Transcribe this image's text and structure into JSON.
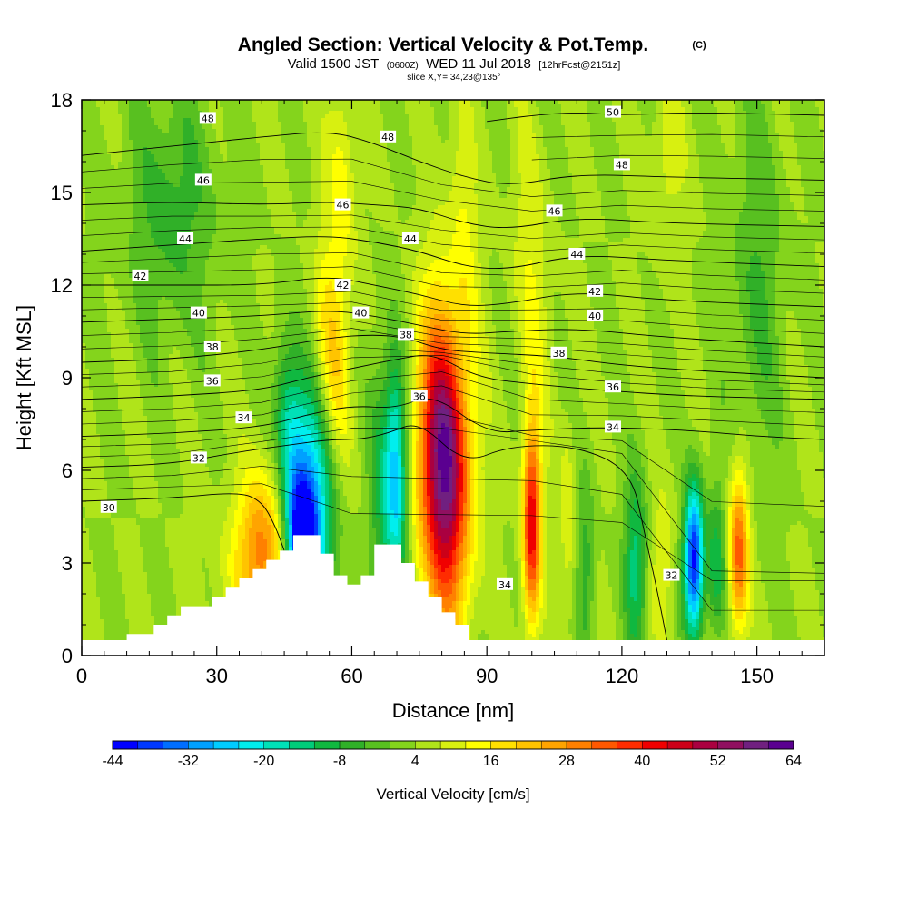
{
  "header": {
    "title": "Angled Section: Vertical Velocity & Pot.Temp.",
    "title_units": "(C)",
    "valid_prefix": "Valid 1500 JST",
    "valid_z": "(0600Z)",
    "valid_date": "WED 11 Jul 2018",
    "forecast": "[12hrFcst@2151z]",
    "slice": "slice X,Y= 34,23@135°"
  },
  "chart_data": {
    "type": "heatmap",
    "xlabel": "Distance [nm]",
    "ylabel": "Height [Kft MSL]",
    "xlim": [
      0,
      165
    ],
    "ylim": [
      0,
      18
    ],
    "x_ticks": [
      0,
      30,
      60,
      90,
      120,
      150
    ],
    "y_ticks": [
      0,
      3,
      6,
      9,
      12,
      15,
      18
    ],
    "x_tick_labels": [
      "0",
      "30",
      "60",
      "90",
      "120",
      "150"
    ],
    "y_tick_labels": [
      "0",
      "3",
      "6",
      "9",
      "12",
      "15",
      "18"
    ],
    "colorbar": {
      "title": "Vertical Velocity [cm/s]",
      "min": -44,
      "max": 64,
      "step": 4,
      "tick_labels": [
        "-44",
        "-32",
        "-20",
        "-8",
        "4",
        "16",
        "28",
        "40",
        "52",
        "64"
      ],
      "colors": [
        "#0000ff",
        "#0038ff",
        "#006eff",
        "#00a0ff",
        "#00ccff",
        "#00eeee",
        "#00e0b8",
        "#00cc7a",
        "#10b840",
        "#30b028",
        "#58c020",
        "#84d41c",
        "#b0e41a",
        "#d8f010",
        "#ffff00",
        "#ffe000",
        "#ffc400",
        "#ffa400",
        "#ff8000",
        "#ff5800",
        "#ff2c00",
        "#f00000",
        "#cc0018",
        "#aa0040",
        "#901060",
        "#702080",
        "#5a0090"
      ]
    },
    "background_velocity": 4,
    "velocity_features": [
      {
        "x": 49,
        "z": 3.5,
        "rx": 3.5,
        "rz": 2.2,
        "tilt": -0.3,
        "value": -40
      },
      {
        "x": 51,
        "z": 5.2,
        "rx": 5,
        "rz": 3.5,
        "tilt": -0.3,
        "value": -24
      },
      {
        "x": 46,
        "z": 7.5,
        "rx": 3,
        "rz": 2.5,
        "tilt": -0.4,
        "value": -12
      },
      {
        "x": 40,
        "z": 3.6,
        "rx": 5,
        "rz": 2.5,
        "tilt": -0.2,
        "value": 24
      },
      {
        "x": 38,
        "z": 2.5,
        "rx": 8,
        "rz": 2.5,
        "tilt": 0,
        "value": 12
      },
      {
        "x": 56,
        "z": 10,
        "rx": 3.5,
        "rz": 3.5,
        "tilt": -0.4,
        "value": 20
      },
      {
        "x": 58,
        "z": 15.5,
        "rx": 3,
        "rz": 3.5,
        "tilt": -0.3,
        "value": 14
      },
      {
        "x": 70,
        "z": 6,
        "rx": 2.4,
        "rz": 3.5,
        "tilt": -0.1,
        "value": -24
      },
      {
        "x": 67,
        "z": 5,
        "rx": 3,
        "rz": 4.5,
        "tilt": -0.15,
        "value": -10
      },
      {
        "x": 80.5,
        "z": 6.2,
        "rx": 5.5,
        "rz": 4.8,
        "tilt": -0.1,
        "value": 62
      },
      {
        "x": 85,
        "z": 14,
        "rx": 3,
        "rz": 4,
        "tilt": -0.4,
        "value": 12
      },
      {
        "x": 100,
        "z": 4.3,
        "rx": 2,
        "rz": 3.2,
        "tilt": 0,
        "value": 44
      },
      {
        "x": 108,
        "z": 4.5,
        "rx": 1.6,
        "rz": 3,
        "tilt": 0,
        "value": 12
      },
      {
        "x": 112,
        "z": 3,
        "rx": 2,
        "rz": 3,
        "tilt": 0,
        "value": -6
      },
      {
        "x": 123,
        "z": 3,
        "rx": 2.5,
        "rz": 3,
        "tilt": 0,
        "value": -14
      },
      {
        "x": 129,
        "z": 3,
        "rx": 2.5,
        "rz": 2.5,
        "tilt": 0,
        "value": 12
      },
      {
        "x": 136,
        "z": 3.1,
        "rx": 2.2,
        "rz": 2.4,
        "tilt": 0,
        "value": -42
      },
      {
        "x": 141,
        "z": 3,
        "rx": 2,
        "rz": 2.5,
        "tilt": 0,
        "value": -10
      },
      {
        "x": 146,
        "z": 3.4,
        "rx": 2.2,
        "rz": 2.6,
        "tilt": 0,
        "value": 34
      },
      {
        "x": 20,
        "z": 14.5,
        "rx": 10,
        "rz": 4,
        "tilt": 0,
        "value": -6
      },
      {
        "x": 100,
        "z": 12,
        "rx": 4,
        "rz": 5,
        "tilt": -0.3,
        "value": 12
      },
      {
        "x": 150,
        "z": 12,
        "rx": 6,
        "rz": 6,
        "tilt": 0,
        "value": -4
      },
      {
        "x": 130,
        "z": 16,
        "rx": 4,
        "rz": 3,
        "tilt": 0,
        "value": 10
      }
    ],
    "terrain": [
      [
        0,
        0.5
      ],
      [
        10,
        0.5
      ],
      [
        10,
        0.7
      ],
      [
        16,
        0.7
      ],
      [
        16,
        1
      ],
      [
        19,
        1
      ],
      [
        19,
        1.3
      ],
      [
        22,
        1.3
      ],
      [
        22,
        1.6
      ],
      [
        25,
        1.6
      ],
      [
        25,
        1.6
      ],
      [
        29,
        1.6
      ],
      [
        29,
        1.9
      ],
      [
        32,
        1.9
      ],
      [
        32,
        2.2
      ],
      [
        35,
        2.2
      ],
      [
        35,
        2.5
      ],
      [
        38,
        2.5
      ],
      [
        38,
        2.8
      ],
      [
        41,
        2.8
      ],
      [
        41,
        3.1
      ],
      [
        44,
        3.1
      ],
      [
        44,
        3.4
      ],
      [
        47,
        3.4
      ],
      [
        47,
        3.9
      ],
      [
        53,
        3.9
      ],
      [
        53,
        3.3
      ],
      [
        56,
        3.3
      ],
      [
        56,
        2.6
      ],
      [
        59,
        2.6
      ],
      [
        59,
        2.3
      ],
      [
        62,
        2.3
      ],
      [
        62,
        2.6
      ],
      [
        65,
        2.6
      ],
      [
        65,
        3.6
      ],
      [
        71,
        3.6
      ],
      [
        71,
        3.0
      ],
      [
        74,
        3.0
      ],
      [
        74,
        2.4
      ],
      [
        77,
        2.4
      ],
      [
        77,
        1.9
      ],
      [
        80,
        1.9
      ],
      [
        80,
        1.4
      ],
      [
        83,
        1.4
      ],
      [
        83,
        1.0
      ],
      [
        86,
        1.0
      ],
      [
        86,
        0.5
      ],
      [
        165,
        0.5
      ]
    ],
    "isentropes": [
      {
        "value": 30,
        "levels": [
          [
            0,
            5.0
          ],
          [
            20,
            5.1
          ],
          [
            35,
            5.3
          ],
          [
            40,
            5.0
          ],
          [
            43,
            4.2
          ],
          [
            45,
            3.4
          ]
        ]
      },
      {
        "value": 32,
        "levels": [
          [
            0,
            6.1
          ],
          [
            20,
            6.2
          ],
          [
            35,
            6.6
          ],
          [
            45,
            6.8
          ],
          [
            55,
            7.0
          ],
          [
            62,
            7.0
          ],
          [
            68,
            7.2
          ],
          [
            75,
            7.6
          ],
          [
            85,
            6.2
          ],
          [
            95,
            6.8
          ],
          [
            110,
            6.8
          ],
          [
            122,
            6.0
          ],
          [
            125,
            4.0
          ],
          [
            128,
            2.0
          ],
          [
            130,
            0.5
          ]
        ]
      },
      {
        "value": 34,
        "levels": [
          [
            0,
            7.1
          ],
          [
            20,
            7.2
          ],
          [
            40,
            7.4
          ],
          [
            50,
            7.8
          ],
          [
            60,
            8.1
          ],
          [
            70,
            8.0
          ],
          [
            78,
            8.5
          ],
          [
            90,
            7.2
          ],
          [
            100,
            7.3
          ],
          [
            115,
            7.4
          ],
          [
            135,
            7.3
          ],
          [
            150,
            7.1
          ],
          [
            165,
            7.0
          ]
        ]
      },
      {
        "value": 36,
        "levels": [
          [
            0,
            8.3
          ],
          [
            20,
            8.4
          ],
          [
            40,
            8.6
          ],
          [
            50,
            9.0
          ],
          [
            60,
            9.3
          ],
          [
            70,
            9.6
          ],
          [
            78,
            9.8
          ],
          [
            88,
            9.0
          ],
          [
            100,
            8.8
          ],
          [
            115,
            8.6
          ],
          [
            135,
            8.4
          ],
          [
            165,
            8.3
          ]
        ]
      },
      {
        "value": 38,
        "levels": [
          [
            0,
            9.5
          ],
          [
            20,
            9.6
          ],
          [
            40,
            9.9
          ],
          [
            55,
            10.3
          ],
          [
            65,
            10.4
          ],
          [
            72,
            10.3
          ],
          [
            80,
            9.9
          ],
          [
            90,
            9.8
          ],
          [
            105,
            9.7
          ],
          [
            120,
            9.4
          ],
          [
            140,
            9.2
          ],
          [
            165,
            9.0
          ]
        ]
      },
      {
        "value": 40,
        "levels": [
          [
            0,
            10.8
          ],
          [
            20,
            10.9
          ],
          [
            40,
            11.0
          ],
          [
            55,
            11.2
          ],
          [
            65,
            11.0
          ],
          [
            75,
            10.7
          ],
          [
            85,
            10.4
          ],
          [
            95,
            10.5
          ],
          [
            110,
            10.6
          ],
          [
            130,
            10.3
          ],
          [
            165,
            10.0
          ]
        ]
      },
      {
        "value": 42,
        "levels": [
          [
            0,
            12.0
          ],
          [
            20,
            12.0
          ],
          [
            40,
            12.0
          ],
          [
            55,
            12.3
          ],
          [
            65,
            12.0
          ],
          [
            75,
            11.7
          ],
          [
            85,
            11.3
          ],
          [
            95,
            11.4
          ],
          [
            110,
            11.8
          ],
          [
            130,
            11.5
          ],
          [
            165,
            11.3
          ]
        ]
      },
      {
        "value": 44,
        "levels": [
          [
            0,
            13.1
          ],
          [
            20,
            13.3
          ],
          [
            40,
            13.5
          ],
          [
            55,
            13.6
          ],
          [
            65,
            13.4
          ],
          [
            75,
            13.1
          ],
          [
            85,
            12.6
          ],
          [
            95,
            12.5
          ],
          [
            110,
            13.0
          ],
          [
            130,
            12.8
          ],
          [
            165,
            12.6
          ]
        ]
      },
      {
        "value": 46,
        "levels": [
          [
            0,
            14.6
          ],
          [
            20,
            14.7
          ],
          [
            40,
            14.6
          ],
          [
            55,
            14.7
          ],
          [
            65,
            14.6
          ],
          [
            75,
            14.5
          ],
          [
            85,
            14.0
          ],
          [
            95,
            13.8
          ],
          [
            110,
            14.2
          ],
          [
            130,
            14.0
          ],
          [
            165,
            13.9
          ]
        ]
      },
      {
        "value": 48,
        "levels": [
          [
            0,
            16.2
          ],
          [
            20,
            16.5
          ],
          [
            40,
            16.8
          ],
          [
            55,
            17.0
          ],
          [
            65,
            16.6
          ],
          [
            75,
            16.0
          ],
          [
            85,
            15.5
          ],
          [
            95,
            15.2
          ],
          [
            110,
            15.6
          ],
          [
            130,
            15.5
          ],
          [
            165,
            15.4
          ]
        ]
      },
      {
        "value": 50,
        "levels": [
          [
            90,
            17.3
          ],
          [
            100,
            17.5
          ],
          [
            110,
            17.6
          ],
          [
            120,
            17.5
          ],
          [
            135,
            17.6
          ],
          [
            165,
            17.5
          ]
        ]
      }
    ],
    "contour_labels": [
      {
        "text": "48",
        "x": 28,
        "z": 17.4
      },
      {
        "text": "48",
        "x": 68,
        "z": 16.8
      },
      {
        "text": "50",
        "x": 118,
        "z": 17.6
      },
      {
        "text": "48",
        "x": 120,
        "z": 15.9
      },
      {
        "text": "46",
        "x": 27,
        "z": 15.4
      },
      {
        "text": "46",
        "x": 58,
        "z": 14.6
      },
      {
        "text": "46",
        "x": 105,
        "z": 14.4
      },
      {
        "text": "44",
        "x": 23,
        "z": 13.5
      },
      {
        "text": "44",
        "x": 73,
        "z": 13.5
      },
      {
        "text": "44",
        "x": 110,
        "z": 13.0
      },
      {
        "text": "42",
        "x": 13,
        "z": 12.3
      },
      {
        "text": "42",
        "x": 58,
        "z": 12.0
      },
      {
        "text": "42",
        "x": 114,
        "z": 11.8
      },
      {
        "text": "40",
        "x": 26,
        "z": 11.1
      },
      {
        "text": "40",
        "x": 62,
        "z": 11.1
      },
      {
        "text": "40",
        "x": 114,
        "z": 11.0
      },
      {
        "text": "38",
        "x": 29,
        "z": 10.0
      },
      {
        "text": "38",
        "x": 72,
        "z": 10.4
      },
      {
        "text": "38",
        "x": 106,
        "z": 9.8
      },
      {
        "text": "36",
        "x": 29,
        "z": 8.9
      },
      {
        "text": "36",
        "x": 75,
        "z": 8.4
      },
      {
        "text": "36",
        "x": 118,
        "z": 8.7
      },
      {
        "text": "34",
        "x": 36,
        "z": 7.7
      },
      {
        "text": "34",
        "x": 118,
        "z": 7.4
      },
      {
        "text": "34",
        "x": 94,
        "z": 2.3
      },
      {
        "text": "32",
        "x": 26,
        "z": 6.4
      },
      {
        "text": "32",
        "x": 131,
        "z": 2.6
      },
      {
        "text": "30",
        "x": 6,
        "z": 4.8
      }
    ]
  }
}
